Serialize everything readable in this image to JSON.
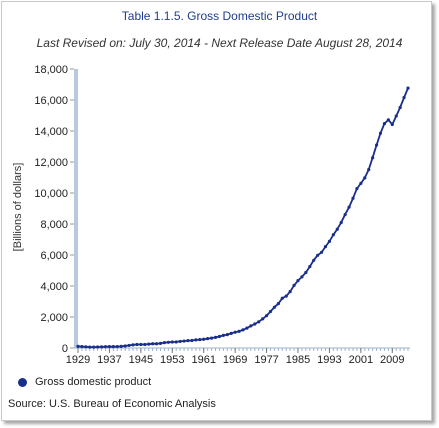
{
  "chart_data": {
    "type": "line",
    "title": "Table 1.1.5. Gross Domestic Product",
    "subtitle": "Last Revised on: July 30, 2014 - Next Release Date August 28, 2014",
    "xlabel": "",
    "ylabel": "[Billions of dollars]",
    "ylim": [
      0,
      18000
    ],
    "xlim": [
      1929,
      2013
    ],
    "yticks": [
      "0",
      "2,000",
      "4,000",
      "6,000",
      "8,000",
      "10,000",
      "12,000",
      "14,000",
      "16,000",
      "18,000"
    ],
    "ytick_values": [
      0,
      2000,
      4000,
      6000,
      8000,
      10000,
      12000,
      14000,
      16000,
      18000
    ],
    "xticks": [
      "1929",
      "1937",
      "1945",
      "1953",
      "1961",
      "1969",
      "1977",
      "1985",
      "1993",
      "2001",
      "2009"
    ],
    "xtick_values": [
      1929,
      1937,
      1945,
      1953,
      1961,
      1969,
      1977,
      1985,
      1993,
      2001,
      2009
    ],
    "grid": false,
    "legend_position": "bottom-left",
    "colors": {
      "series": "#1a2f8a",
      "axis_bar": "#b8c9dd",
      "title": "#1f3d8f"
    },
    "series": [
      {
        "name": "Gross domestic product",
        "x": [
          1929,
          1930,
          1931,
          1932,
          1933,
          1934,
          1935,
          1936,
          1937,
          1938,
          1939,
          1940,
          1941,
          1942,
          1943,
          1944,
          1945,
          1946,
          1947,
          1948,
          1949,
          1950,
          1951,
          1952,
          1953,
          1954,
          1955,
          1956,
          1957,
          1958,
          1959,
          1960,
          1961,
          1962,
          1963,
          1964,
          1965,
          1966,
          1967,
          1968,
          1969,
          1970,
          1971,
          1972,
          1973,
          1974,
          1975,
          1976,
          1977,
          1978,
          1979,
          1980,
          1981,
          1982,
          1983,
          1984,
          1985,
          1986,
          1987,
          1988,
          1989,
          1990,
          1991,
          1992,
          1993,
          1994,
          1995,
          1996,
          1997,
          1998,
          1999,
          2000,
          2001,
          2002,
          2003,
          2004,
          2005,
          2006,
          2007,
          2008,
          2009,
          2010,
          2011,
          2012,
          2013
        ],
        "values": [
          105,
          92,
          77,
          60,
          57,
          67,
          74,
          85,
          93,
          87,
          93,
          103,
          129,
          166,
          203,
          225,
          228,
          227,
          249,
          274,
          272,
          300,
          347,
          367,
          389,
          391,
          425,
          449,
          474,
          482,
          522,
          543,
          563,
          605,
          638,
          686,
          744,
          815,
          862,
          943,
          1020,
          1076,
          1168,
          1283,
          1429,
          1549,
          1689,
          1878,
          2086,
          2357,
          2632,
          2862,
          3211,
          3345,
          3638,
          4041,
          4347,
          4590,
          4870,
          5253,
          5658,
          5980,
          6174,
          6539,
          6879,
          7309,
          7664,
          8100,
          8609,
          9089,
          9661,
          10285,
          10622,
          10978,
          11511,
          12275,
          13094,
          13856,
          14478,
          14719,
          14419,
          14964,
          15518,
          16163,
          16768
        ]
      }
    ],
    "legend": [
      "Gross domestic product"
    ],
    "source": "Source: U.S. Bureau of Economic Analysis"
  }
}
